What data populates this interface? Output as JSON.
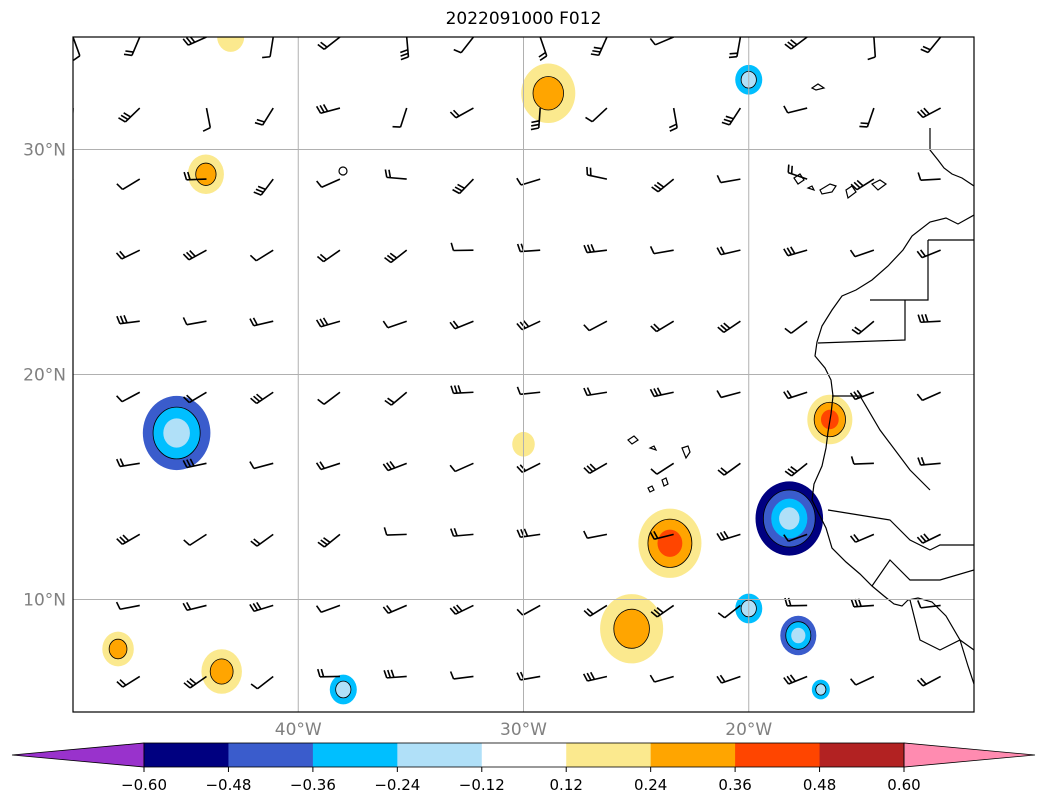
{
  "title": "2022091000 F012",
  "map": {
    "lon_range": [
      -50,
      -10
    ],
    "lat_range": [
      5,
      35
    ],
    "gridlines": true,
    "lat_ticks": [
      {
        "value": 30,
        "label": "30°N"
      },
      {
        "value": 20,
        "label": "20°N"
      },
      {
        "value": 10,
        "label": "10°N"
      }
    ],
    "lon_ticks": [
      {
        "value": -40,
        "label": "40°W"
      },
      {
        "value": -30,
        "label": "30°W"
      },
      {
        "value": -20,
        "label": "20°W"
      }
    ],
    "contour_anomalies": [
      {
        "lon": -28.9,
        "lat": 32.5,
        "r": 1.2,
        "value": 0.28
      },
      {
        "lon": -44.1,
        "lat": 28.9,
        "r": 0.8,
        "value": 0.3
      },
      {
        "lon": -45.4,
        "lat": 17.4,
        "r": 1.5,
        "value": -0.38
      },
      {
        "lon": -30.0,
        "lat": 16.9,
        "r": 0.5,
        "value": 0.2
      },
      {
        "lon": -16.4,
        "lat": 18.0,
        "r": 1.0,
        "value": 0.4
      },
      {
        "lon": -23.5,
        "lat": 12.5,
        "r": 1.4,
        "value": 0.38
      },
      {
        "lon": -25.2,
        "lat": 8.7,
        "r": 1.4,
        "value": 0.32
      },
      {
        "lon": -18.2,
        "lat": 13.6,
        "r": 1.5,
        "value": -0.5
      },
      {
        "lon": -20.0,
        "lat": 9.6,
        "r": 0.6,
        "value": -0.28
      },
      {
        "lon": -17.8,
        "lat": 8.4,
        "r": 0.8,
        "value": -0.4
      },
      {
        "lon": -48.0,
        "lat": 7.8,
        "r": 0.7,
        "value": 0.3
      },
      {
        "lon": -43.4,
        "lat": 6.8,
        "r": 0.9,
        "value": 0.24
      },
      {
        "lon": -38.0,
        "lat": 6.0,
        "r": 0.6,
        "value": -0.3
      },
      {
        "lon": -20.0,
        "lat": 33.1,
        "r": 0.6,
        "value": -0.28
      },
      {
        "lon": -16.8,
        "lat": 6.0,
        "r": 0.4,
        "value": -0.25
      },
      {
        "lon": -43.0,
        "lat": 35.0,
        "r": 0.6,
        "value": 0.2
      }
    ]
  },
  "colorbar": {
    "boundaries": [
      -0.72,
      -0.6,
      -0.48,
      -0.36,
      -0.24,
      -0.12,
      0.12,
      0.24,
      0.36,
      0.48,
      0.6,
      0.72
    ],
    "colors": [
      "#9932cc",
      "#000080",
      "#3a5ccc",
      "#00bfff",
      "#b0e0f8",
      "#ffffff",
      "#fbe98e",
      "#ffa500",
      "#ff4500",
      "#b22222",
      "#ff8bb0"
    ],
    "under_color": "#9932cc",
    "over_color": "#ff8bb0",
    "tick_labels": [
      "−0.60",
      "−0.48",
      "−0.36",
      "−0.24",
      "−0.12",
      "0.12",
      "0.24",
      "0.36",
      "0.48",
      "0.60"
    ]
  }
}
